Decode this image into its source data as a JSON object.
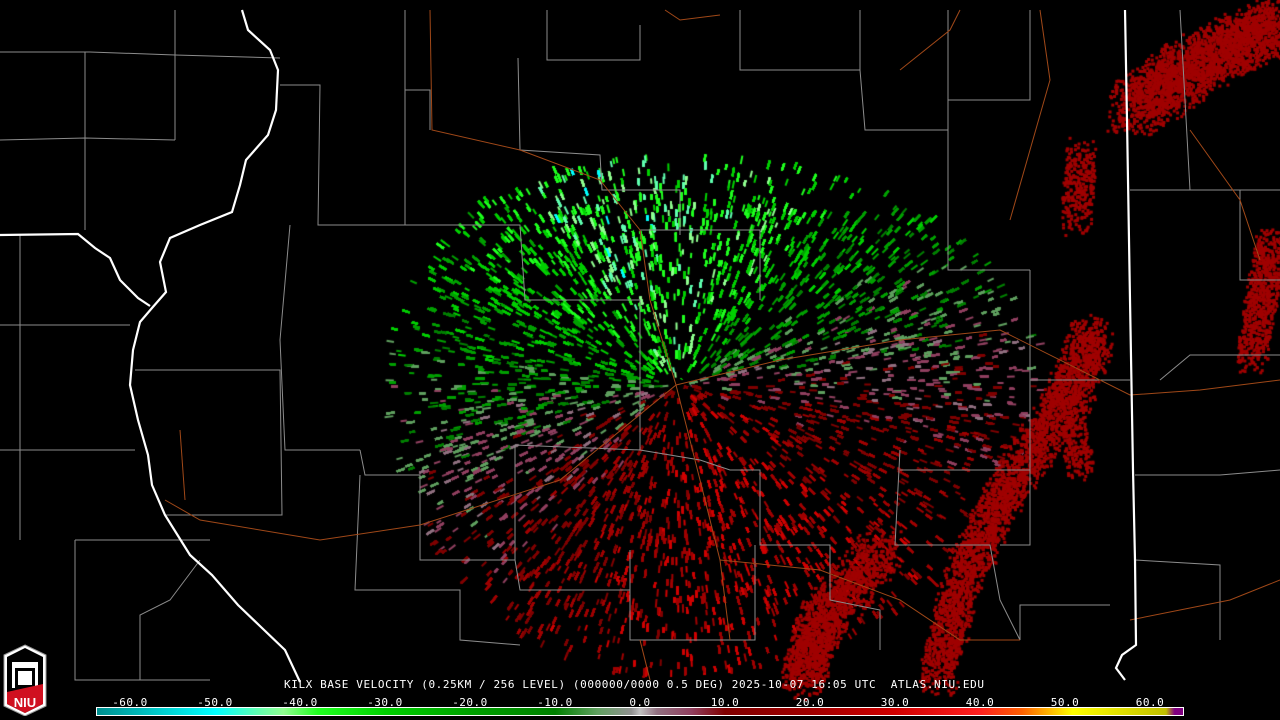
{
  "product": {
    "caption": "KILX BASE VELOCITY (0.25KM / 256 LEVEL) (000000/0000 0.5 DEG) 2025-10-07 16:05 UTC  ATLAS.NIU.EDU",
    "station": "KILX",
    "logo_text": "NIU"
  },
  "colorbar": {
    "unit_range": [
      -64,
      64
    ],
    "ticks": [
      "-60.0",
      "-50.0",
      "-40.0",
      "-30.0",
      "-20.0",
      "-10.0",
      "0.0",
      "10.0",
      "20.0",
      "30.0",
      "40.0",
      "50.0",
      "60.0"
    ],
    "tick_values": [
      -60,
      -50,
      -40,
      -30,
      -20,
      -10,
      0,
      10,
      20,
      30,
      40,
      50,
      60
    ],
    "stops": [
      {
        "v": -64,
        "c": "#009090"
      },
      {
        "v": -55,
        "c": "#00d8d8"
      },
      {
        "v": -50,
        "c": "#00ffff"
      },
      {
        "v": -45,
        "c": "#60ffb0"
      },
      {
        "v": -42,
        "c": "#90ff90"
      },
      {
        "v": -38,
        "c": "#20ff20"
      },
      {
        "v": -30,
        "c": "#00d000"
      },
      {
        "v": -20,
        "c": "#00a000"
      },
      {
        "v": -10,
        "c": "#008000"
      },
      {
        "v": -5,
        "c": "#60a060"
      },
      {
        "v": -1,
        "c": "#909090"
      },
      {
        "v": 0,
        "c": "#c0c0c0"
      },
      {
        "v": 2,
        "c": "#907080"
      },
      {
        "v": 6,
        "c": "#904060"
      },
      {
        "v": 10,
        "c": "#800000"
      },
      {
        "v": 20,
        "c": "#a00000"
      },
      {
        "v": 30,
        "c": "#d00000"
      },
      {
        "v": 40,
        "c": "#ff2020"
      },
      {
        "v": 45,
        "c": "#ff6000"
      },
      {
        "v": 48,
        "c": "#ffb000"
      },
      {
        "v": 51,
        "c": "#ffff00"
      },
      {
        "v": 62,
        "c": "#c0c000"
      },
      {
        "v": 63,
        "c": "#800080"
      }
    ]
  },
  "colors": {
    "state_border": "#ffffff",
    "county_line": "#909090",
    "highway": "#b05020"
  }
}
